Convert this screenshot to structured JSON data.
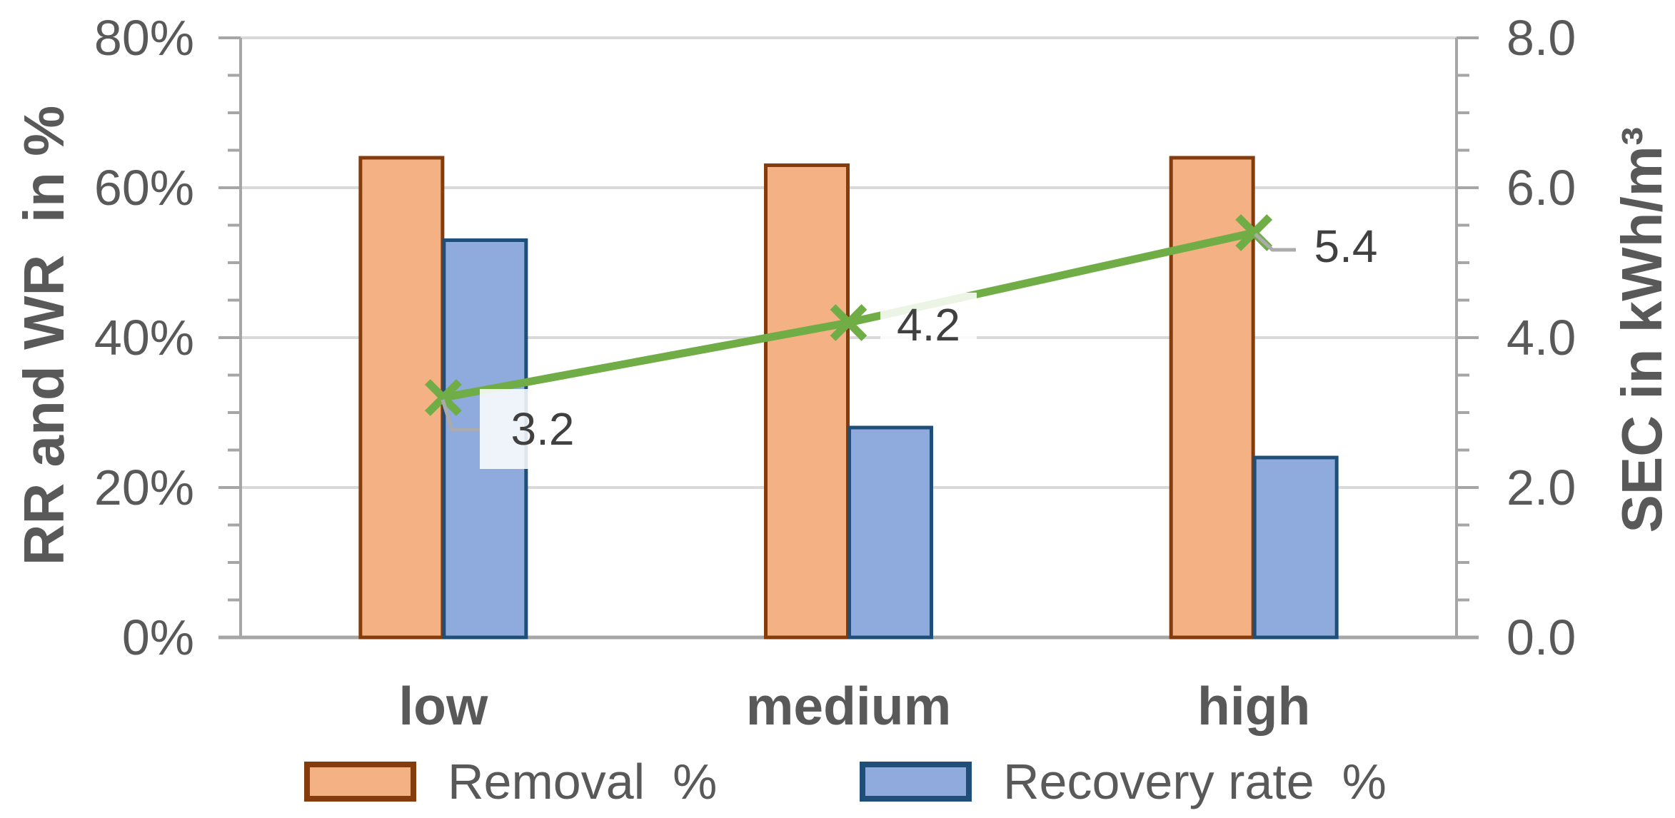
{
  "chart_data": {
    "type": "bar-line-combo",
    "categories": [
      "low",
      "medium",
      "high"
    ],
    "series": [
      {
        "key": "removal",
        "name": "Removal  %",
        "type": "bar",
        "axis": "left",
        "values": [
          64,
          63,
          64
        ]
      },
      {
        "key": "recovery",
        "name": "Recovery rate  %",
        "type": "bar",
        "axis": "left",
        "values": [
          53,
          28,
          24
        ]
      },
      {
        "key": "sec",
        "name": "SEC",
        "type": "line",
        "axis": "right",
        "values": [
          3.2,
          4.2,
          5.4
        ],
        "marker": "x",
        "data_labels": [
          "3.2",
          "4.2",
          "5.4"
        ]
      }
    ],
    "left_axis": {
      "title": "RR and WR  in %",
      "ticks": [
        "0%",
        "20%",
        "40%",
        "60%",
        "80%"
      ],
      "min": 0,
      "max": 80,
      "minor_step": 5
    },
    "right_axis": {
      "title": "SEC in kWh/m³",
      "ticks": [
        "0.0",
        "2.0",
        "4.0",
        "6.0",
        "8.0"
      ],
      "min": 0,
      "max": 8,
      "minor_step": 0.5
    },
    "legend_position": "bottom",
    "grid": true
  },
  "colors": {
    "removal_fill": "#F4B183",
    "removal_border": "#843C0C",
    "recovery_fill": "#8FAADC",
    "recovery_border": "#1F4E79",
    "sec_line": "#70AD47",
    "gridline": "#D9D9D9",
    "axis": "#A6A6A6",
    "text": "#595959",
    "data_label_text": "#404040",
    "leader": "#ABABAB",
    "label_box": "rgba(255,255,255,0.86)"
  }
}
